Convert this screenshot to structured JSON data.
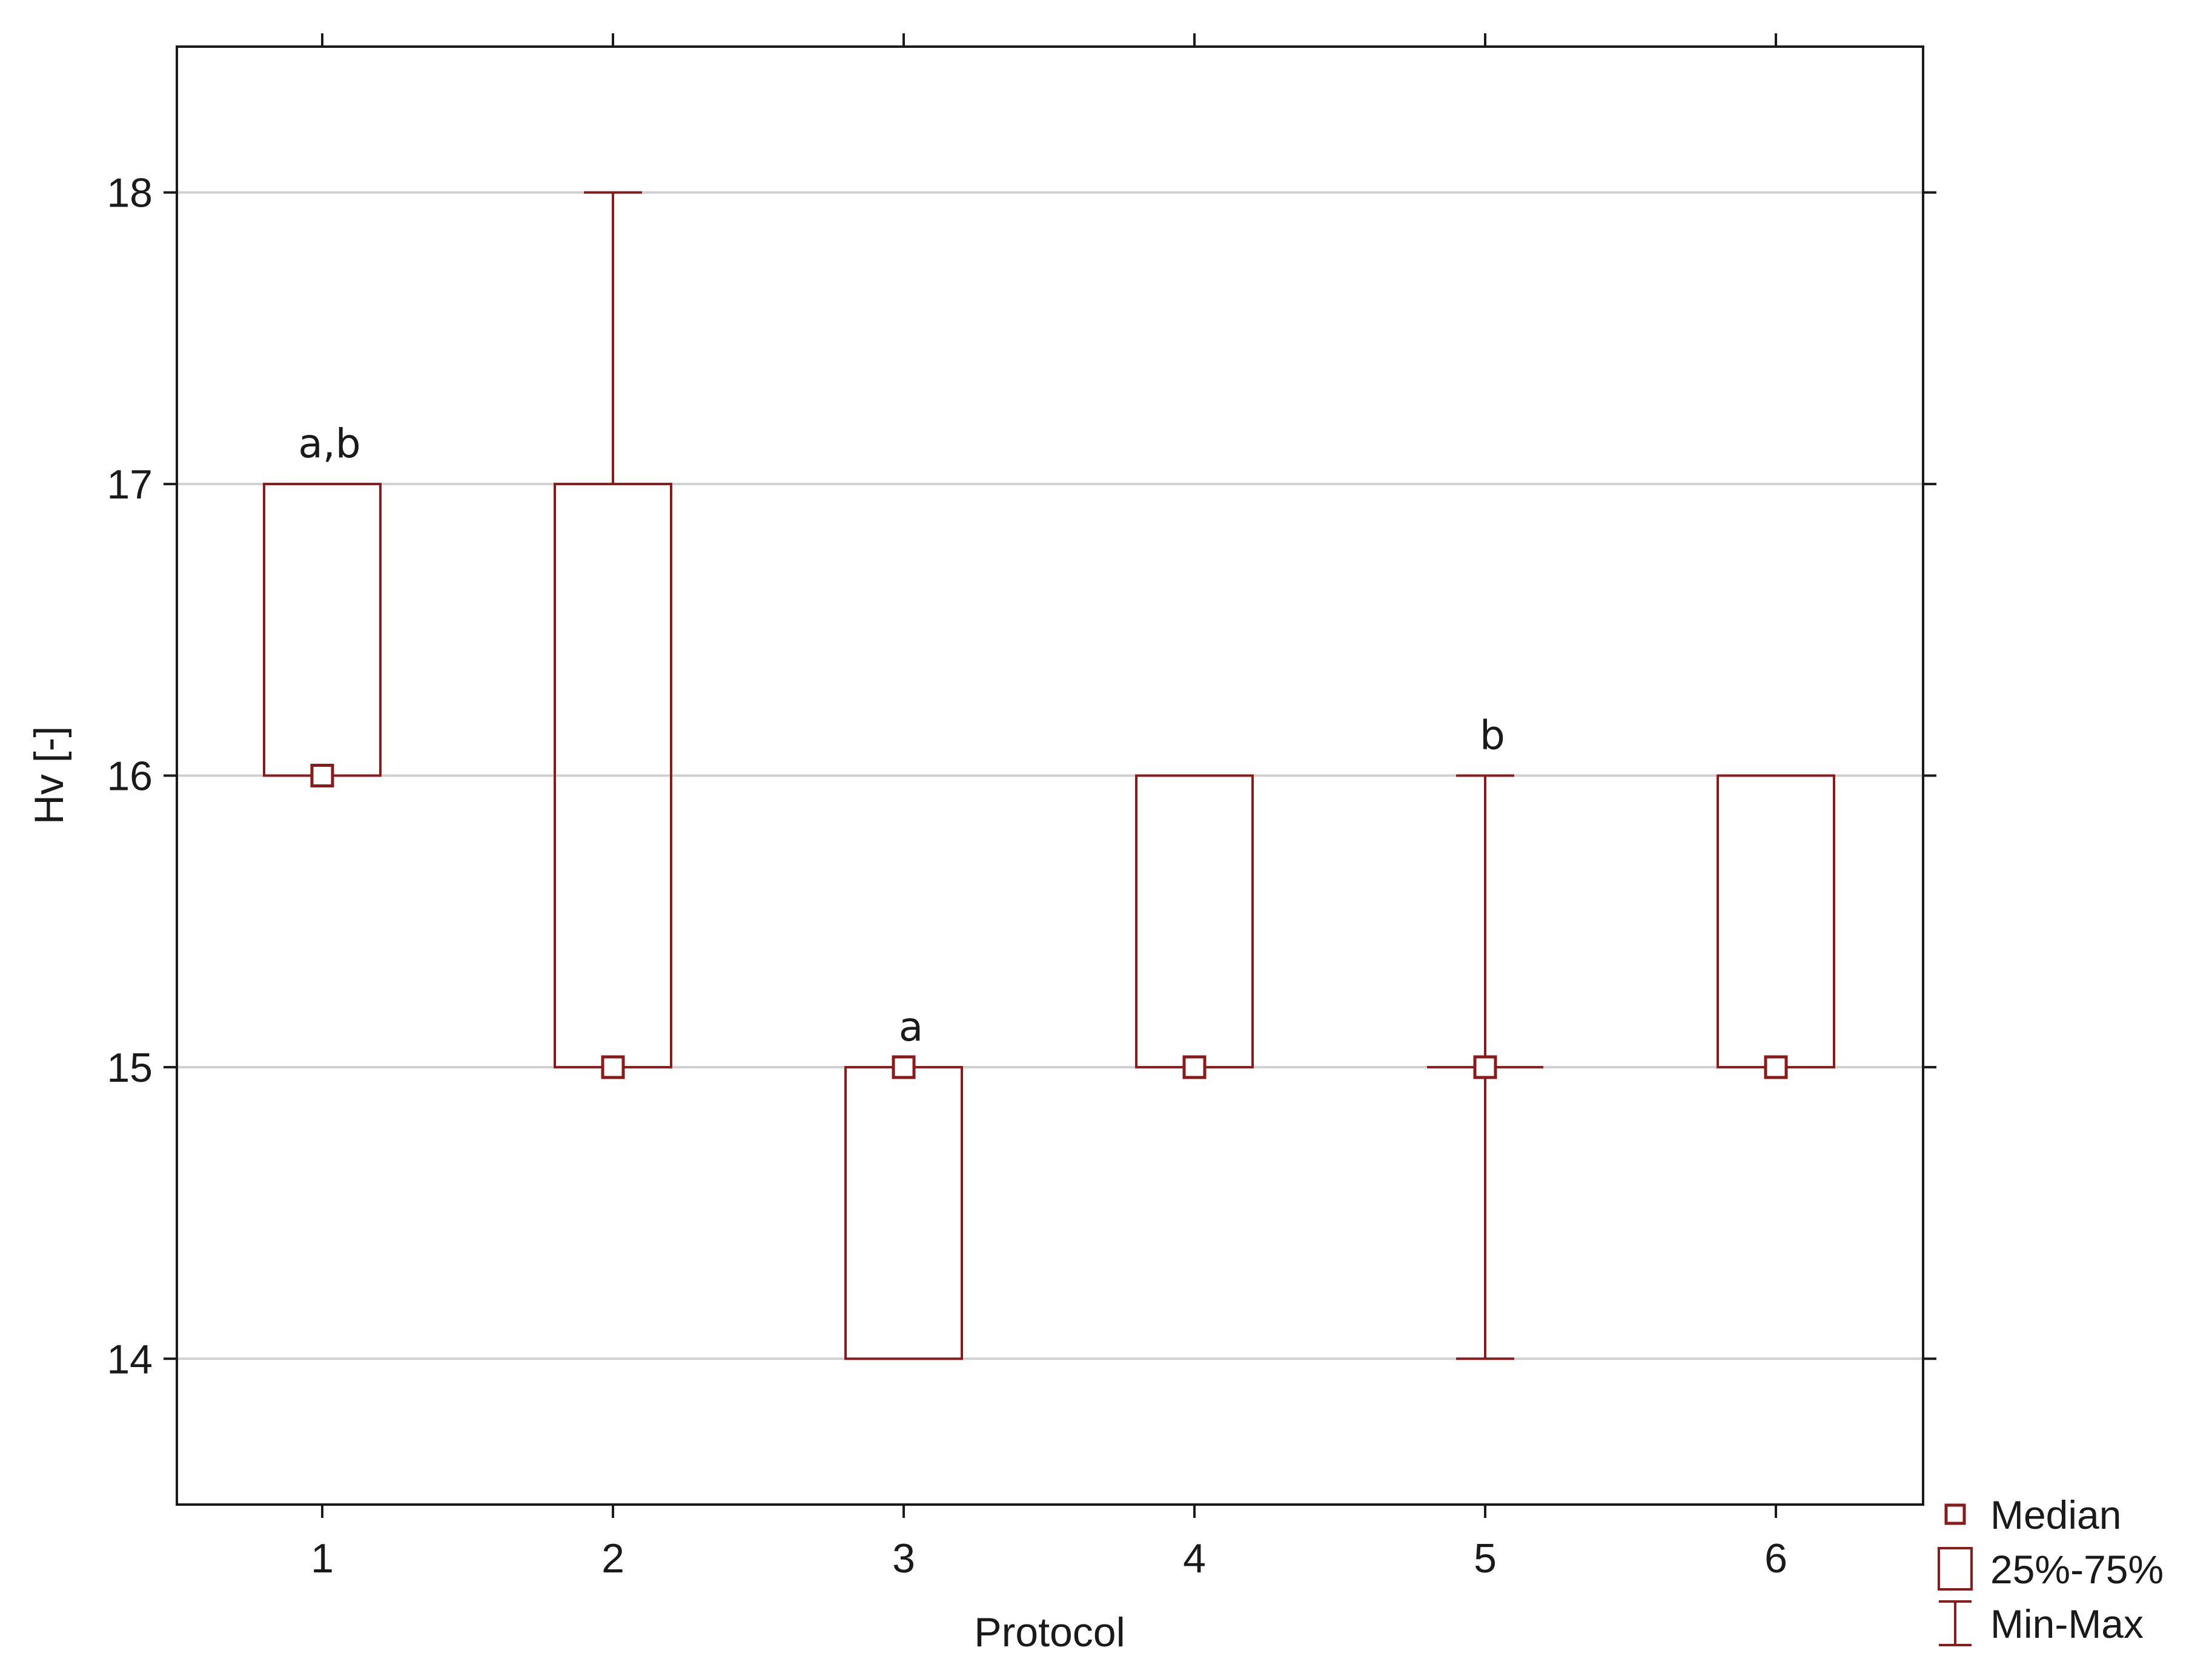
{
  "chart_data": {
    "type": "box",
    "xlabel": "Protocol",
    "ylabel": "Hv [-]",
    "categories": [
      "1",
      "2",
      "3",
      "4",
      "5",
      "6"
    ],
    "ylim": [
      13.5,
      18.5
    ],
    "yticks": [
      14,
      15,
      16,
      17,
      18
    ],
    "ytick_labels": [
      "14",
      "15",
      "16",
      "17",
      "18"
    ],
    "grid": "horizontal",
    "legend_position": "bottom-right, outside plot",
    "series_color": "#8b1a1a",
    "boxes": [
      {
        "category": "1",
        "median": 16,
        "q1": 16,
        "q3": 17,
        "min": 16,
        "max": 17,
        "annotation": "a,b"
      },
      {
        "category": "2",
        "median": 15,
        "q1": 15,
        "q3": 17,
        "min": 15,
        "max": 18,
        "annotation": ""
      },
      {
        "category": "3",
        "median": 15,
        "q1": 14,
        "q3": 15,
        "min": 14,
        "max": 15,
        "annotation": "a"
      },
      {
        "category": "4",
        "median": 15,
        "q1": 15,
        "q3": 16,
        "min": 15,
        "max": 16,
        "annotation": ""
      },
      {
        "category": "5",
        "median": 15,
        "q1": 15,
        "q3": 15,
        "min": 14,
        "max": 16,
        "annotation": "b"
      },
      {
        "category": "6",
        "median": 15,
        "q1": 15,
        "q3": 16,
        "min": 15,
        "max": 16,
        "annotation": ""
      }
    ],
    "legend": [
      {
        "symbol": "median-marker",
        "label": "Median"
      },
      {
        "symbol": "box",
        "label": "25%-75%"
      },
      {
        "symbol": "whisker",
        "label": "Min-Max"
      }
    ]
  }
}
